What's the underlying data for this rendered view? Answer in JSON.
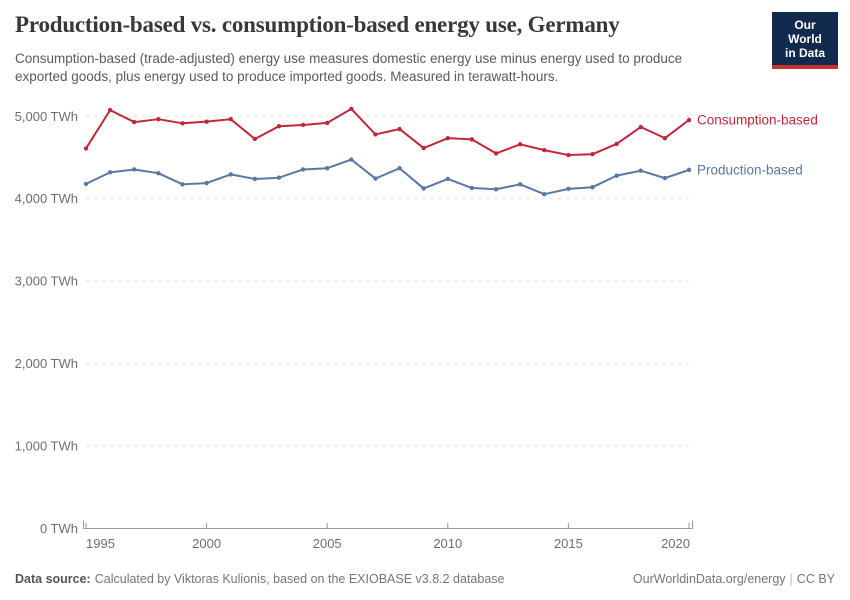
{
  "header": {
    "title": "Production-based vs. consumption-based energy use, Germany",
    "subtitle_lines": [
      "Consumption-based (trade-adjusted) energy use measures domestic energy use minus energy used to produce",
      "exported goods, plus energy used to produce imported goods. Measured in terawatt-hours."
    ],
    "logo": {
      "line1": "Our World",
      "line2": "in Data"
    }
  },
  "footer": {
    "source_label": "Data source:",
    "source_text": "Calculated by Viktoras Kulionis, based on the EXIOBASE v3.8.2 database",
    "link": "OurWorldinData.org/energy",
    "separator": "|",
    "license": "CC BY"
  },
  "colors": {
    "consumption_based": "#C0273A",
    "production_based": "#5878A6",
    "gridline": "#DDDDDD",
    "axis": "#999999",
    "tick_text": "#6E6E6E",
    "logo_bg": "#122A4D",
    "logo_accent": "#C5352C"
  },
  "chart_data": {
    "type": "line",
    "title": "Production-based vs. consumption-based energy use, Germany",
    "xlabel": "",
    "ylabel": "TWh",
    "xlim": [
      1995,
      2020
    ],
    "ylim": [
      0,
      5200
    ],
    "grid": "dashed-horizontal",
    "legend": "end-of-line-labels",
    "x": [
      1995,
      1996,
      1997,
      1998,
      1999,
      2000,
      2001,
      2002,
      2003,
      2004,
      2005,
      2006,
      2007,
      2008,
      2009,
      2010,
      2011,
      2012,
      2013,
      2014,
      2015,
      2016,
      2017,
      2018,
      2019,
      2020
    ],
    "x_ticks": [
      1995,
      2000,
      2005,
      2010,
      2015,
      2020
    ],
    "y_ticks": [
      {
        "value": 5000,
        "label": "5,000 TWh"
      },
      {
        "value": 4000,
        "label": "4,000 TWh"
      },
      {
        "value": 3000,
        "label": "3,000 TWh"
      },
      {
        "value": 2000,
        "label": "2,000 TWh"
      },
      {
        "value": 1000,
        "label": "1,000 TWh"
      },
      {
        "value": 0,
        "label": "0 TWh"
      }
    ],
    "series": [
      {
        "name": "Consumption-based",
        "color": "#C0273A",
        "values": [
          4610,
          5075,
          4930,
          4965,
          4915,
          4935,
          4965,
          4725,
          4880,
          4895,
          4920,
          5090,
          4780,
          4845,
          4615,
          4735,
          4720,
          4550,
          4660,
          4590,
          4530,
          4540,
          4665,
          4870,
          4735,
          4955
        ]
      },
      {
        "name": "Production-based",
        "color": "#5878A6",
        "values": [
          4180,
          4320,
          4355,
          4310,
          4175,
          4190,
          4295,
          4240,
          4255,
          4355,
          4370,
          4475,
          4245,
          4370,
          4125,
          4240,
          4130,
          4115,
          4175,
          4055,
          4120,
          4140,
          4280,
          4340,
          4250,
          4350
        ]
      }
    ]
  }
}
